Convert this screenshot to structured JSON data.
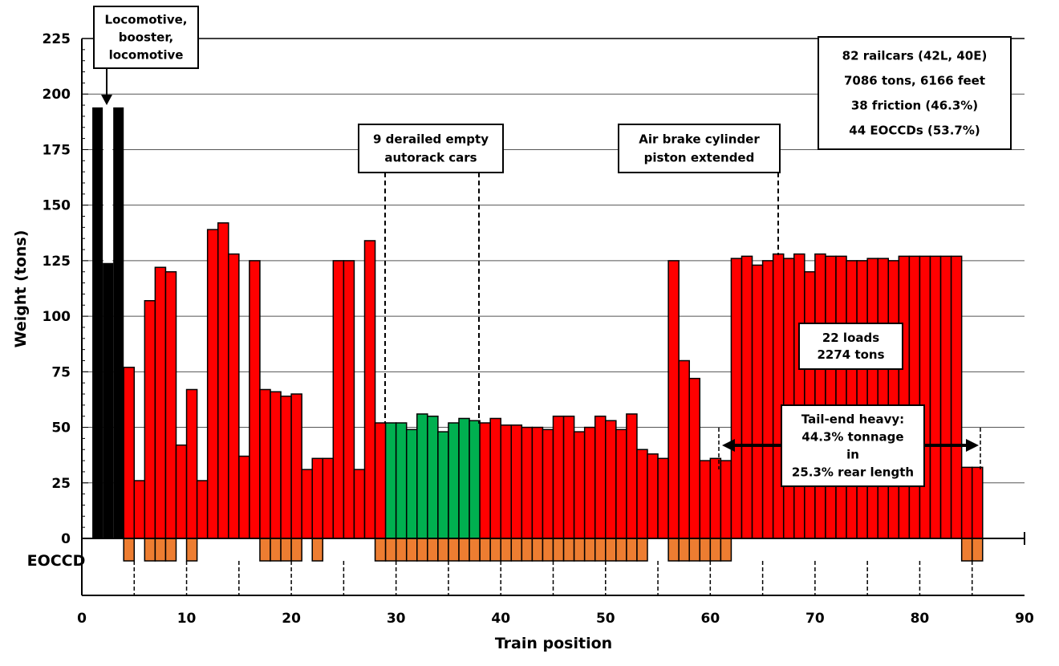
{
  "chart_data": {
    "type": "bar",
    "title": "",
    "xlabel": "Train position",
    "ylabel": "Weight (tons)",
    "xlim": [
      0,
      90
    ],
    "ylim": [
      0,
      225
    ],
    "xticks": [
      0,
      10,
      20,
      30,
      40,
      50,
      60,
      70,
      80,
      90
    ],
    "yticks": [
      0,
      25,
      50,
      75,
      100,
      125,
      150,
      175,
      200,
      225
    ],
    "grid": true,
    "eoccd_label": "EOCCD",
    "positions": [
      1,
      2,
      3,
      4,
      5,
      6,
      7,
      8,
      9,
      10,
      11,
      12,
      13,
      14,
      15,
      16,
      17,
      18,
      19,
      20,
      21,
      22,
      23,
      24,
      25,
      26,
      27,
      28,
      29,
      30,
      31,
      32,
      33,
      34,
      35,
      36,
      37,
      38,
      39,
      40,
      41,
      42,
      43,
      44,
      45,
      46,
      47,
      48,
      49,
      50,
      51,
      52,
      53,
      54,
      55,
      56,
      57,
      58,
      59,
      60,
      61,
      62,
      63,
      64,
      65,
      66,
      67,
      68,
      69,
      70,
      71,
      72,
      73,
      74,
      75,
      76,
      77,
      78,
      79,
      80,
      81,
      82,
      83,
      84,
      85
    ],
    "values": [
      194,
      124,
      194,
      77,
      26,
      107,
      122,
      120,
      42,
      67,
      26,
      139,
      142,
      128,
      37,
      125,
      67,
      66,
      64,
      65,
      31,
      36,
      36,
      125,
      125,
      31,
      134,
      52,
      52,
      52,
      49,
      56,
      55,
      48,
      52,
      54,
      53,
      52,
      54,
      51,
      51,
      50,
      50,
      49,
      55,
      55,
      48,
      50,
      55,
      53,
      49,
      56,
      40,
      38,
      36,
      125,
      80,
      72,
      35,
      36,
      35,
      126,
      127,
      123,
      125,
      128,
      126,
      128,
      120,
      128,
      127,
      127,
      125,
      125,
      126,
      126,
      125,
      127,
      127,
      127,
      127,
      127,
      127,
      32,
      32
    ],
    "series_groups": [
      {
        "name": "Locomotives",
        "positions": [
          1,
          2,
          3
        ],
        "color": "#000000"
      },
      {
        "name": "Derailed empty autorack cars",
        "positions": [
          29,
          30,
          31,
          32,
          33,
          34,
          35,
          36,
          37
        ],
        "color": "#00b050"
      },
      {
        "name": "Railcars",
        "color": "#ff0000"
      }
    ],
    "eoccd_positions": [
      4,
      6,
      7,
      8,
      10,
      17,
      18,
      19,
      20,
      22,
      28,
      29,
      30,
      31,
      32,
      33,
      34,
      35,
      36,
      37,
      38,
      39,
      40,
      41,
      42,
      43,
      44,
      45,
      46,
      47,
      48,
      49,
      50,
      51,
      52,
      53,
      56,
      57,
      58,
      59,
      60,
      61,
      84,
      85
    ],
    "eoccd_color": "#ed7d31",
    "annotations": {
      "locomotive": [
        "Locomotive,",
        "booster,",
        "locomotive"
      ],
      "derailed": [
        "9 derailed empty",
        "autorack cars"
      ],
      "air_brake": [
        "Air brake cylinder",
        "piston extended"
      ],
      "summary": [
        "82 railcars (42L, 40E)",
        "7086 tons, 6166 feet",
        "38 friction (46.3%)",
        "44 EOCCDs (53.7%)"
      ],
      "loads": [
        "22 loads",
        "2274 tons"
      ],
      "tail_end": [
        "Tail-end heavy:",
        "44.3% tonnage",
        "in",
        "25.3% rear length"
      ]
    }
  }
}
